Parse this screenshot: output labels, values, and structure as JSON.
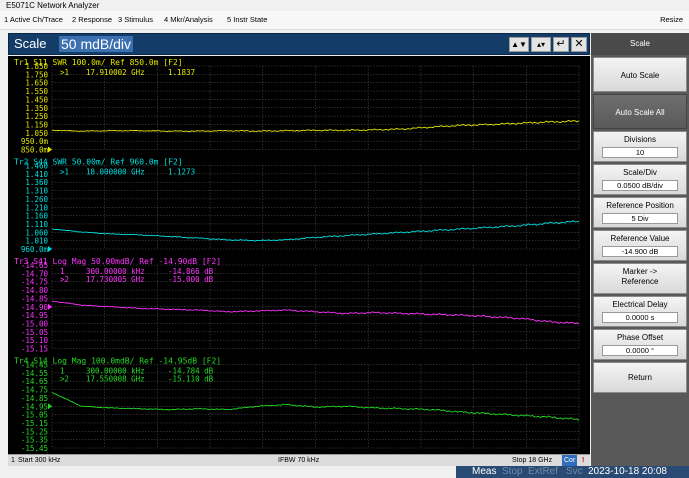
{
  "window": {
    "title": "E5071C Network Analyzer"
  },
  "menu": {
    "items": [
      "1 Active Ch/Trace",
      "2 Response",
      "3 Stimulus",
      "4 Mkr/Analysis",
      "5 Instr State"
    ],
    "resize": "Resize"
  },
  "entry": {
    "label": "Scale",
    "value": "50 mdB/div"
  },
  "softkeys": {
    "title": "Scale",
    "auto_scale": "Auto Scale",
    "auto_scale_all": "Auto Scale All",
    "divisions": {
      "label": "Divisions",
      "value": "10"
    },
    "scale_div": {
      "label": "Scale/Div",
      "value": "0.0500 dB/div"
    },
    "ref_pos": {
      "label": "Reference Position",
      "value": "5 Div"
    },
    "ref_val": {
      "label": "Reference Value",
      "value": "-14.900 dB"
    },
    "marker_ref": {
      "label1": "Marker ->",
      "label2": "Reference"
    },
    "elec_delay": {
      "label": "Electrical Delay",
      "value": "0.0000 s"
    },
    "phase_offset": {
      "label": "Phase Offset",
      "value": "0.0000 °"
    },
    "return": "Return"
  },
  "status": {
    "channel": "1",
    "start": "Start 300 kHz",
    "ifbw": "IFBW 70 kHz",
    "stop": "Stop 18 GHz",
    "cor": "Cor",
    "bang": "!"
  },
  "instrument": {
    "meas": "Meas",
    "stop": "Stop",
    "extref": "ExtRef",
    "svc": "Svc",
    "datetime": "2023-10-18 20:08"
  },
  "colors": {
    "tr1": "#e6e600",
    "tr2": "#00e0e0",
    "tr3": "#ff33ff",
    "tr4": "#22dd22",
    "grid": "#555555"
  },
  "traces": [
    {
      "id": "tr1",
      "header": "Tr1 S11 SWR 100.0m/ Ref 850.0m [F2]",
      "yticks": [
        "1.850",
        "1.750",
        "1.650",
        "1.550",
        "1.450",
        "1.350",
        "1.250",
        "1.150",
        "1.050",
        "950.0m",
        "850.0m"
      ],
      "markers": [
        {
          "n": ">1",
          "freq": "17.910002 GHz",
          "val": "1.1837"
        }
      ],
      "x_ghz": [
        0.0003,
        1,
        2,
        3,
        4,
        5,
        6,
        7,
        8,
        9,
        10,
        11,
        12,
        13,
        14,
        15,
        16,
        17,
        18
      ],
      "values": [
        1.08,
        1.07,
        1.075,
        1.075,
        1.07,
        1.07,
        1.075,
        1.07,
        1.075,
        1.08,
        1.08,
        1.085,
        1.095,
        1.12,
        1.14,
        1.15,
        1.165,
        1.18,
        1.19
      ]
    },
    {
      "id": "tr2",
      "header": "Tr2 S44 SWR 50.00m/ Ref 960.0m [F2]",
      "yticks": [
        "1.460",
        "1.410",
        "1.360",
        "1.310",
        "1.260",
        "1.210",
        "1.160",
        "1.110",
        "1.060",
        "1.010",
        "960.0m"
      ],
      "markers": [
        {
          "n": ">1",
          "freq": "18.000000 GHz",
          "val": "1.1273"
        }
      ],
      "x_ghz": [
        0.0003,
        1,
        2,
        3,
        4,
        5,
        6,
        7,
        8,
        9,
        10,
        11,
        12,
        13,
        14,
        15,
        16,
        17,
        18
      ],
      "values": [
        1.08,
        1.062,
        1.05,
        1.045,
        1.035,
        1.025,
        1.015,
        1.01,
        1.015,
        1.03,
        1.04,
        1.05,
        1.06,
        1.07,
        1.08,
        1.09,
        1.1,
        1.115,
        1.125
      ]
    },
    {
      "id": "tr3",
      "header": "Tr3 S41 Log Mag 50.00mdB/ Ref -14.90dB [F2]",
      "yticks": [
        "-14.65",
        "-14.70",
        "-14.75",
        "-14.80",
        "-14.85",
        "-14.90",
        "-14.95",
        "-15.00",
        "-15.05",
        "-15.10",
        "-15.15"
      ],
      "markers": [
        {
          "n": "1",
          "freq": "300.00000 kHz",
          "val": "-14.866 dB"
        },
        {
          "n": ">2",
          "freq": "17.730005 GHz",
          "val": "-15.000 dB"
        }
      ],
      "x_ghz": [
        0.0003,
        1,
        2,
        3,
        4,
        5,
        6,
        7,
        8,
        9,
        10,
        11,
        12,
        13,
        14,
        15,
        16,
        17,
        18
      ],
      "values": [
        -14.866,
        -14.89,
        -14.9,
        -14.91,
        -14.915,
        -14.92,
        -14.93,
        -14.925,
        -14.92,
        -14.93,
        -14.94,
        -14.935,
        -14.94,
        -14.945,
        -14.95,
        -14.96,
        -14.97,
        -14.99,
        -15.0
      ]
    },
    {
      "id": "tr4",
      "header": "Tr4 S14 Log Mag 100.0mdB/ Ref -14.95dB [F2]",
      "yticks": [
        "-14.45",
        "-14.55",
        "-14.65",
        "-14.75",
        "-14.85",
        "-14.95",
        "-15.05",
        "-15.15",
        "-15.25",
        "-15.35",
        "-15.45"
      ],
      "markers": [
        {
          "n": "1",
          "freq": "300.00000 kHz",
          "val": "-14.784 dB"
        },
        {
          "n": ">2",
          "freq": "17.550008 GHz",
          "val": "-15.110 dB"
        }
      ],
      "x_ghz": [
        0.0003,
        1,
        2,
        3,
        4,
        5,
        6,
        7,
        8,
        9,
        10,
        11,
        12,
        13,
        14,
        15,
        16,
        17,
        18
      ],
      "values": [
        -14.784,
        -14.95,
        -14.97,
        -14.98,
        -14.99,
        -14.98,
        -14.99,
        -14.95,
        -14.93,
        -14.96,
        -14.95,
        -14.97,
        -14.98,
        -14.99,
        -15.02,
        -15.04,
        -15.06,
        -15.08,
        -15.11
      ]
    }
  ],
  "chart_data": {
    "type": "line",
    "x_range_ghz": [
      0.0003,
      18
    ],
    "series": [
      {
        "name": "Tr1 S11 SWR",
        "ylim": [
          0.85,
          1.85
        ]
      },
      {
        "name": "Tr2 S44 SWR",
        "ylim": [
          0.96,
          1.46
        ]
      },
      {
        "name": "Tr3 S41 Log Mag",
        "ylim": [
          -15.15,
          -14.65
        ]
      },
      {
        "name": "Tr4 S14 Log Mag",
        "ylim": [
          -15.45,
          -14.45
        ]
      }
    ]
  }
}
